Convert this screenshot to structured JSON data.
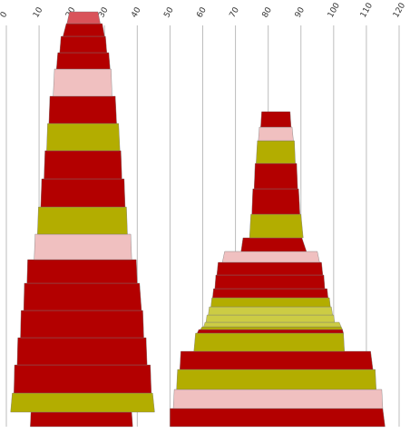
{
  "chart_data": {
    "type": "stacked-trapezoid",
    "title": "",
    "xlabel": "",
    "ylabel": "",
    "x_ticks": [
      "0",
      "10",
      "20",
      "30",
      "40",
      "50",
      "60",
      "70",
      "80",
      "90",
      "100",
      "110",
      "120"
    ],
    "xlim": [
      0,
      120
    ],
    "grid": true,
    "legend": "none",
    "colors": {
      "red": "#b30000",
      "olive": "#b3ad00",
      "light_olive": "#cccc44",
      "pink": "#f0c0c0",
      "salmon": "#d9535a"
    },
    "stacks": [
      {
        "segments": [
          {
            "color": "red",
            "bottom": [
              7.3,
              38.6
            ],
            "top": [
              7.5,
              38.3
            ]
          },
          {
            "color": "olive",
            "bottom": [
              1.3,
              45.3
            ],
            "top": [
              1.8,
              44.7
            ]
          },
          {
            "color": "red",
            "bottom": [
              2.3,
              44.3
            ],
            "top": [
              2.5,
              44.0
            ]
          },
          {
            "color": "red",
            "bottom": [
              3.3,
              43.0
            ],
            "top": [
              3.5,
              42.7
            ]
          },
          {
            "color": "red",
            "bottom": [
              4.3,
              42.0
            ],
            "top": [
              4.5,
              41.7
            ]
          },
          {
            "color": "red",
            "bottom": [
              5.3,
              41.3
            ],
            "top": [
              5.5,
              40.7
            ]
          },
          {
            "color": "red",
            "bottom": [
              6.3,
              40.0
            ],
            "top": [
              6.5,
              39.7
            ]
          },
          {
            "color": "pink",
            "bottom": [
              8.5,
              38.3
            ],
            "top": [
              8.8,
              38.0
            ]
          },
          {
            "color": "olive",
            "bottom": [
              9.5,
              37.0
            ],
            "top": [
              9.8,
              36.7
            ]
          },
          {
            "color": "red",
            "bottom": [
              10.5,
              36.3
            ],
            "top": [
              10.8,
              36.0
            ]
          },
          {
            "color": "red",
            "bottom": [
              11.5,
              35.3
            ],
            "top": [
              11.8,
              35.0
            ]
          },
          {
            "color": "olive",
            "bottom": [
              12.3,
              34.7
            ],
            "top": [
              12.6,
              34.3
            ]
          },
          {
            "color": "red",
            "bottom": [
              13.0,
              33.7
            ],
            "top": [
              13.3,
              33.3
            ]
          },
          {
            "color": "pink",
            "bottom": [
              14.3,
              32.3
            ],
            "top": [
              14.7,
              32.0
            ]
          },
          {
            "color": "red",
            "bottom": [
              15.3,
              31.7
            ],
            "top": [
              15.7,
              31.3
            ]
          },
          {
            "color": "red",
            "bottom": [
              16.3,
              30.7
            ],
            "top": [
              16.7,
              30.3
            ]
          },
          {
            "color": "red",
            "bottom": [
              17.3,
              30.0
            ],
            "top": [
              18.3,
              29.3
            ]
          },
          {
            "color": "salmon",
            "bottom": [
              18.5,
              28.7
            ],
            "top": [
              19.3,
              28.0
            ]
          }
        ]
      },
      {
        "segments": [
          {
            "color": "red",
            "bottom": [
              50.0,
              115.7
            ],
            "top": [
              50.0,
              115.0
            ]
          },
          {
            "color": "pink",
            "bottom": [
              51.0,
              115.0
            ],
            "top": [
              51.3,
              114.7
            ]
          },
          {
            "color": "olive",
            "bottom": [
              52.0,
              113.0
            ],
            "top": [
              52.3,
              112.7
            ]
          },
          {
            "color": "red",
            "bottom": [
              53.0,
              112.0
            ],
            "top": [
              53.3,
              111.3
            ]
          },
          {
            "color": "olive",
            "bottom": [
              57.3,
              103.3
            ],
            "top": [
              57.8,
              103.0
            ]
          },
          {
            "color": "red",
            "bottom": [
              58.3,
              103.0
            ],
            "top": [
              58.8,
              102.7
            ]
          },
          {
            "color": "olive",
            "bottom": [
              59.3,
              102.7
            ],
            "top": [
              59.8,
              102.3
            ]
          },
          {
            "color": "light_olive",
            "bottom": [
              60.3,
              102.3
            ],
            "top": [
              60.7,
              101.7
            ]
          },
          {
            "color": "light_olive",
            "bottom": [
              61.0,
              100.3
            ],
            "top": [
              61.3,
              100.0
            ]
          },
          {
            "color": "light_olive",
            "bottom": [
              61.7,
              99.7
            ],
            "top": [
              62.0,
              99.3
            ]
          },
          {
            "color": "olive",
            "bottom": [
              62.5,
              99.0
            ],
            "top": [
              62.8,
              98.7
            ]
          },
          {
            "color": "red",
            "bottom": [
              63.0,
              98.3
            ],
            "top": [
              63.3,
              98.0
            ]
          },
          {
            "color": "red",
            "bottom": [
              63.7,
              97.3
            ],
            "top": [
              64.0,
              97.0
            ]
          },
          {
            "color": "red",
            "bottom": [
              64.3,
              96.7
            ],
            "top": [
              64.7,
              96.3
            ]
          },
          {
            "color": "pink",
            "bottom": [
              66.0,
              95.7
            ],
            "top": [
              66.7,
              95.0
            ]
          },
          {
            "color": "red",
            "bottom": [
              71.7,
              91.7
            ],
            "top": [
              72.3,
              90.3
            ]
          },
          {
            "color": "olive",
            "bottom": [
              74.3,
              90.7
            ],
            "top": [
              74.7,
              90.0
            ]
          },
          {
            "color": "red",
            "bottom": [
              75.0,
              89.7
            ],
            "top": [
              75.3,
              89.3
            ]
          },
          {
            "color": "red",
            "bottom": [
              75.7,
              89.0
            ],
            "top": [
              76.0,
              88.7
            ]
          },
          {
            "color": "olive",
            "bottom": [
              76.3,
              88.3
            ],
            "top": [
              76.7,
              88.0
            ]
          },
          {
            "color": "pink",
            "bottom": [
              77.0,
              87.7
            ],
            "top": [
              77.3,
              87.3
            ]
          },
          {
            "color": "red",
            "bottom": [
              77.7,
              87.0
            ],
            "top": [
              78.0,
              86.7
            ]
          }
        ]
      }
    ]
  }
}
